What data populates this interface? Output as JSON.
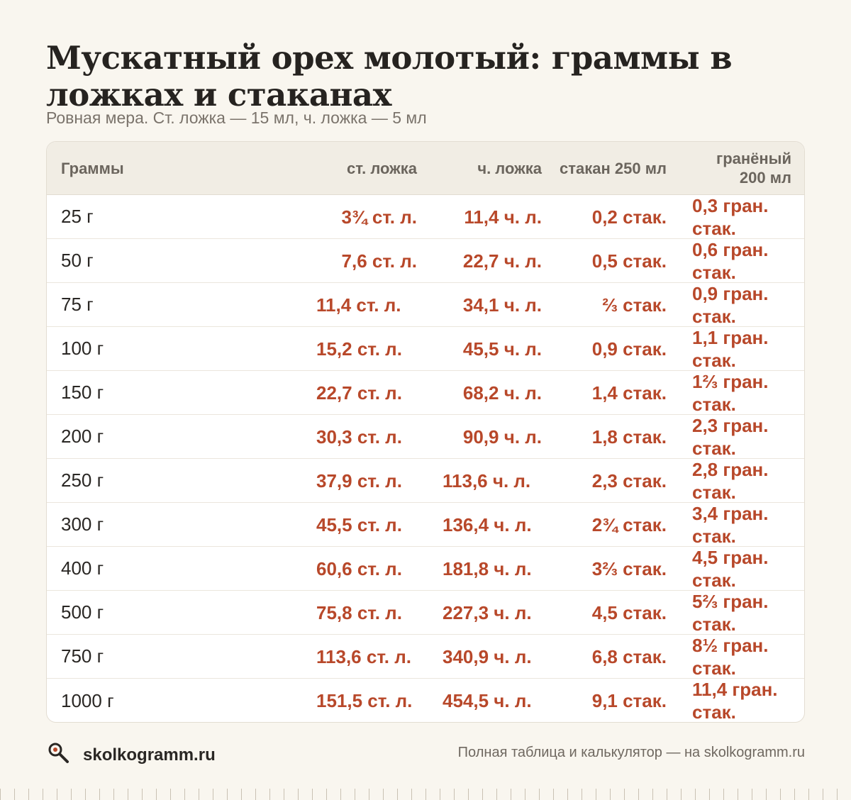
{
  "title": "Мускатный орех молотый: граммы в ложках и стаканах",
  "subtitle": "Ровная мера. Ст. ложка — 15 мл, ч. ложка — 5 мл",
  "table": {
    "headers": [
      "Граммы",
      "ст. ложка",
      "ч. ложка",
      "стакан 250 мл",
      "гранёный 200 мл"
    ],
    "rows": [
      [
        "25 г",
        "3¾ ст. л.",
        "11,4 ч. л.",
        "0,2 стак.",
        "0,3 гран. стак."
      ],
      [
        "50 г",
        "7,6 ст. л.",
        "22,7 ч. л.",
        "0,5 стак.",
        "0,6 гран. стак."
      ],
      [
        "75 г",
        "11,4 ст. л.",
        "34,1 ч. л.",
        "⅔ стак.",
        "0,9 гран. стак."
      ],
      [
        "100 г",
        "15,2 ст. л.",
        "45,5 ч. л.",
        "0,9 стак.",
        "1,1 гран. стак."
      ],
      [
        "150 г",
        "22,7 ст. л.",
        "68,2 ч. л.",
        "1,4 стак.",
        "1⅔ гран. стак."
      ],
      [
        "200 г",
        "30,3 ст. л.",
        "90,9 ч. л.",
        "1,8 стак.",
        "2,3 гран. стак."
      ],
      [
        "250 г",
        "37,9 ст. л.",
        "113,6 ч. л.",
        "2,3 стак.",
        "2,8 гран. стак."
      ],
      [
        "300 г",
        "45,5 ст. л.",
        "136,4 ч. л.",
        "2¾ стак.",
        "3,4 гран. стак."
      ],
      [
        "400 г",
        "60,6 ст. л.",
        "181,8 ч. л.",
        "3⅔ стак.",
        "4,5 гран. стак."
      ],
      [
        "500 г",
        "75,8 ст. л.",
        "227,3 ч. л.",
        "4,5 стак.",
        "5⅔ гран. стак."
      ],
      [
        "750 г",
        "113,6 ст. л.",
        "340,9 ч. л.",
        "6,8 стак.",
        "8½ гран. стак."
      ],
      [
        "1000 г",
        "151,5 ст. л.",
        "454,5 ч. л.",
        "9,1 стак.",
        "11,4 гран. стак."
      ]
    ]
  },
  "footer": {
    "brand": "skolkogramm.ru",
    "brand_icon": "search-icon",
    "note": "Полная таблица и калькулятор — на skolkogramm.ru"
  },
  "colors": {
    "accent": "#b8482a",
    "background": "#f9f6ef"
  }
}
